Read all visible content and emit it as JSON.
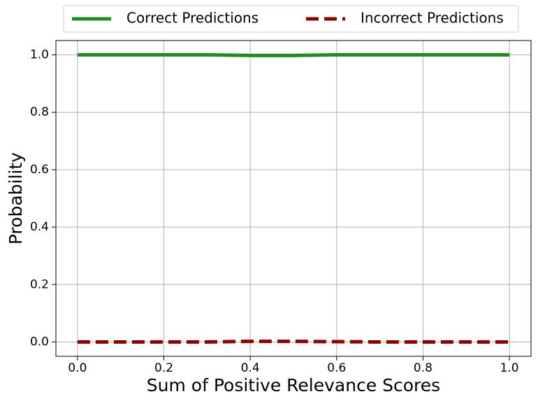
{
  "chart_data": {
    "type": "line",
    "x_label": "Sum of Positive Relevance Scores",
    "y_label": "Probability",
    "x": [
      0.0,
      0.1,
      0.2,
      0.3,
      0.4,
      0.5,
      0.6,
      0.7,
      0.8,
      0.9,
      1.0
    ],
    "series": [
      {
        "name": "Correct Predictions",
        "color": "#228b22",
        "linestyle": "solid",
        "values": [
          1.0,
          1.0,
          1.0,
          1.0,
          0.998,
          0.998,
          1.0,
          1.0,
          1.0,
          1.0,
          1.0
        ]
      },
      {
        "name": "Incorrect Predictions",
        "color": "#8b0000",
        "linestyle": "dashed",
        "values": [
          0.0,
          0.0,
          0.0,
          0.0,
          0.002,
          0.002,
          0.001,
          0.0,
          0.0,
          0.0,
          0.0
        ]
      }
    ],
    "xlim": [
      -0.05,
      1.05
    ],
    "ylim": [
      -0.05,
      1.05
    ],
    "xticks": [
      {
        "value": 0,
        "label": "0.0"
      },
      {
        "value": 0.2,
        "label": "0.2"
      },
      {
        "value": 0.4,
        "label": "0.4"
      },
      {
        "value": 0.6,
        "label": "0.6"
      },
      {
        "value": 0.8,
        "label": "0.8"
      },
      {
        "value": 1,
        "label": "1.0"
      }
    ],
    "yticks": [
      {
        "value": 0,
        "label": "0.0"
      },
      {
        "value": 0.2,
        "label": "0.2"
      },
      {
        "value": 0.4,
        "label": "0.4"
      },
      {
        "value": 0.6,
        "label": "0.6"
      },
      {
        "value": 0.8,
        "label": "0.8"
      },
      {
        "value": 1,
        "label": "1.0"
      }
    ],
    "grid": true,
    "legend": "top"
  }
}
